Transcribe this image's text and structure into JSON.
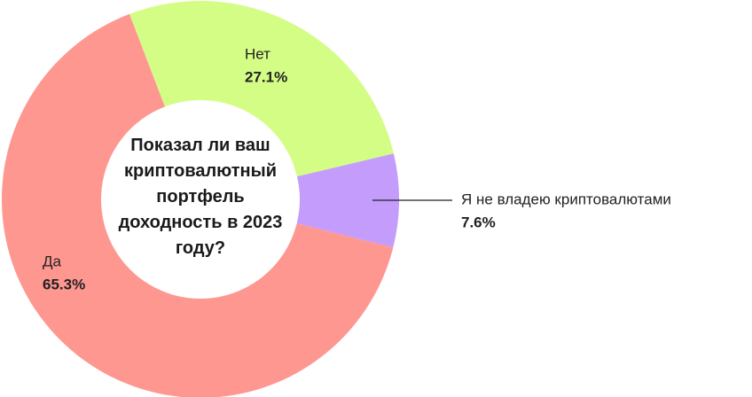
{
  "chart_data": {
    "type": "donut",
    "title": "Показал ли ваш криптовалютный портфель доходность в 2023 году?",
    "categories": [
      "Да",
      "Нет",
      "Я не владею криптовалютами"
    ],
    "values": [
      65.3,
      27.1,
      7.6
    ],
    "value_labels": [
      "65.3%",
      "27.1%",
      "7.6%"
    ],
    "colors": [
      "#ff9791",
      "#d4fd86",
      "#c49cfc"
    ]
  }
}
